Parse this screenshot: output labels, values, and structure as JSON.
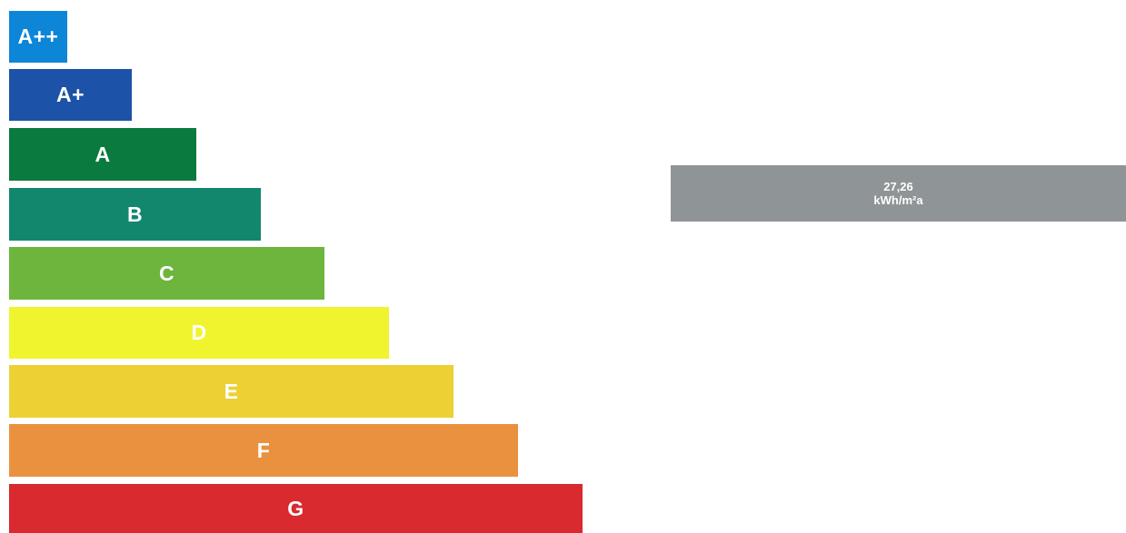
{
  "scale": {
    "bands": [
      {
        "label": "A++",
        "color": "#0d86d8"
      },
      {
        "label": "A+",
        "color": "#1c52a8"
      },
      {
        "label": "A",
        "color": "#0b7a3e"
      },
      {
        "label": "B",
        "color": "#12876e"
      },
      {
        "label": "C",
        "color": "#6db53d"
      },
      {
        "label": "D",
        "color": "#f0f42e"
      },
      {
        "label": "E",
        "color": "#edd033"
      },
      {
        "label": "F",
        "color": "#ea9140"
      },
      {
        "label": "G",
        "color": "#d82a2f"
      }
    ]
  },
  "indicator": {
    "value": "27,26",
    "unit": "kWh/m²a",
    "color": "#8f9496"
  }
}
